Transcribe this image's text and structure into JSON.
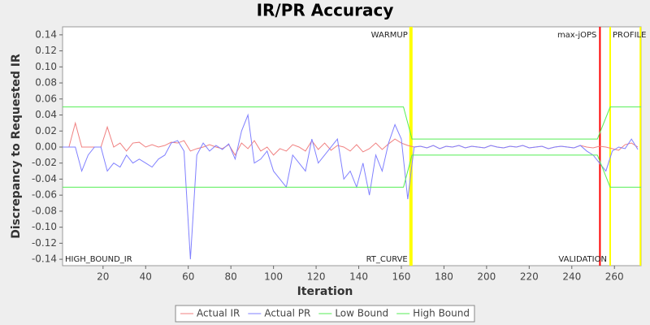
{
  "chart_data": {
    "type": "line",
    "title": "IR/PR Accuracy",
    "x_label": "Iteration",
    "y_label": "Discrepancy to Requested IR",
    "xlim": [
      1,
      272.5
    ],
    "ylim": [
      -0.148,
      0.15
    ],
    "xticks": [
      20,
      40,
      60,
      80,
      100,
      120,
      140,
      160,
      180,
      200,
      220,
      240,
      260
    ],
    "yticks": [
      -0.14,
      -0.12,
      {
        "value": -0.1,
        "label": "-0.10"
      },
      -0.08,
      -0.06,
      -0.04,
      -0.02,
      {
        "value": 0,
        "label": "0.00"
      },
      0.02,
      0.04,
      0.06,
      0.08,
      {
        "value": 0.1,
        "label": "0.10"
      },
      0.12,
      0.14
    ],
    "grid": false,
    "legend": "bottom",
    "series": [
      {
        "name": "Actual IR",
        "color": "#f08080",
        "x": [
          1,
          4,
          7,
          10,
          13,
          16,
          19,
          22,
          25,
          28,
          31,
          34,
          37,
          40,
          43,
          46,
          49,
          52,
          55,
          58,
          61,
          64,
          67,
          70,
          73,
          76,
          79,
          82,
          85,
          88,
          91,
          94,
          97,
          100,
          103,
          106,
          109,
          112,
          115,
          118,
          121,
          124,
          127,
          130,
          133,
          136,
          139,
          142,
          145,
          148,
          151,
          154,
          157,
          160,
          163,
          166,
          169,
          172,
          175,
          178,
          181,
          184,
          187,
          190,
          193,
          196,
          199,
          202,
          205,
          208,
          211,
          214,
          217,
          220,
          223,
          226,
          229,
          232,
          235,
          238,
          241,
          244,
          247,
          250,
          253,
          256,
          259,
          262,
          265,
          268,
          271
        ],
        "values": [
          0,
          0,
          0.03,
          0,
          0,
          0,
          0,
          0.025,
          0,
          0.005,
          -0.005,
          0.005,
          0.006,
          0,
          0.003,
          0,
          0.002,
          0.006,
          0.005,
          0.008,
          -0.005,
          -0.002,
          0,
          0.003,
          0,
          -0.002,
          0.003,
          -0.01,
          0.005,
          -0.002,
          0.008,
          -0.005,
          0,
          -0.01,
          -0.002,
          -0.005,
          0.003,
          0,
          -0.005,
          0.008,
          -0.003,
          0.005,
          -0.004,
          0.002,
          0,
          -0.005,
          0.003,
          -0.006,
          -0.002,
          0.005,
          -0.003,
          0.004,
          0.01,
          0.005,
          0.002,
          0,
          0.001,
          -0.001,
          0.002,
          -0.002,
          0.001,
          0,
          0.002,
          -0.001,
          0.001,
          0,
          -0.001,
          0.002,
          0,
          -0.001,
          0.001,
          0,
          0.002,
          -0.001,
          0,
          0.001,
          -0.002,
          0,
          0.001,
          0,
          -0.001,
          0.002,
          0,
          -0.001,
          0.001,
          0,
          -0.002,
          -0.004,
          0.003,
          0.005,
          0
        ]
      },
      {
        "name": "Actual PR",
        "color": "#8080ff",
        "x": [
          1,
          4,
          7,
          10,
          13,
          16,
          19,
          22,
          25,
          28,
          31,
          34,
          37,
          40,
          43,
          46,
          49,
          52,
          55,
          58,
          61,
          64,
          67,
          70,
          73,
          76,
          79,
          82,
          85,
          88,
          91,
          94,
          97,
          100,
          103,
          106,
          109,
          112,
          115,
          118,
          121,
          124,
          127,
          130,
          133,
          136,
          139,
          142,
          145,
          148,
          151,
          154,
          157,
          160,
          163,
          166,
          169,
          172,
          175,
          178,
          181,
          184,
          187,
          190,
          193,
          196,
          199,
          202,
          205,
          208,
          211,
          214,
          217,
          220,
          223,
          226,
          229,
          232,
          235,
          238,
          241,
          244,
          247,
          250,
          253,
          256,
          259,
          262,
          265,
          268,
          271
        ],
        "values": [
          0,
          0,
          0,
          -0.03,
          -0.01,
          0,
          0,
          -0.03,
          -0.02,
          -0.025,
          -0.01,
          -0.02,
          -0.015,
          -0.02,
          -0.025,
          -0.015,
          -0.01,
          0.005,
          0.008,
          -0.005,
          -0.14,
          -0.01,
          0.005,
          -0.005,
          0.002,
          -0.003,
          0.004,
          -0.015,
          0.02,
          0.04,
          -0.02,
          -0.015,
          -0.005,
          -0.03,
          -0.04,
          -0.05,
          -0.01,
          -0.02,
          -0.03,
          0.01,
          -0.02,
          -0.01,
          0,
          0.01,
          -0.04,
          -0.03,
          -0.05,
          -0.02,
          -0.06,
          -0.01,
          -0.03,
          0.005,
          0.028,
          0.01,
          -0.065,
          0,
          0.001,
          -0.001,
          0.002,
          -0.002,
          0.001,
          0,
          0.002,
          -0.001,
          0.001,
          0,
          -0.001,
          0.002,
          0,
          -0.001,
          0.001,
          0,
          0.002,
          -0.001,
          0,
          0.001,
          -0.002,
          0,
          0.001,
          0,
          -0.001,
          0.002,
          -0.005,
          -0.01,
          -0.02,
          -0.03,
          -0.005,
          0,
          -0.002,
          0.01,
          -0.003
        ]
      },
      {
        "name": "Low Bound",
        "color": "#55ee55",
        "x": [
          1,
          161,
          165,
          252,
          258,
          272.5
        ],
        "values": [
          -0.05,
          -0.05,
          -0.01,
          -0.01,
          -0.05,
          -0.05
        ]
      },
      {
        "name": "High Bound",
        "color": "#55ee55",
        "x": [
          1,
          161,
          165,
          252,
          258,
          272.5
        ],
        "values": [
          0.05,
          0.05,
          0.01,
          0.01,
          0.05,
          0.05
        ]
      }
    ],
    "markers": [
      {
        "x": 164.5,
        "color": "#ffff00",
        "width": 4
      },
      {
        "x": 253.2,
        "color": "#ff0000",
        "width": 2
      },
      {
        "x": 258,
        "color": "#ffff00",
        "width": 2
      },
      {
        "x": 272.2,
        "color": "#ffff00",
        "width": 2
      }
    ],
    "annotations": [
      {
        "text": "WARMUP",
        "x": 164.5,
        "anchor": "end",
        "vpos": "top"
      },
      {
        "text": "RT_CURVE",
        "x": 164.5,
        "anchor": "end",
        "vpos": "bottom"
      },
      {
        "text": "max-jOPS",
        "x": 253.2,
        "anchor": "end",
        "vpos": "top"
      },
      {
        "text": "VALIDATION",
        "x": 258,
        "anchor": "end",
        "vpos": "bottom"
      },
      {
        "text": "PROFILE",
        "x": 258,
        "anchor": "start",
        "vpos": "top"
      },
      {
        "text": "HIGH_BOUND_IR",
        "x": 1,
        "anchor": "start",
        "vpos": "bottom"
      }
    ]
  }
}
